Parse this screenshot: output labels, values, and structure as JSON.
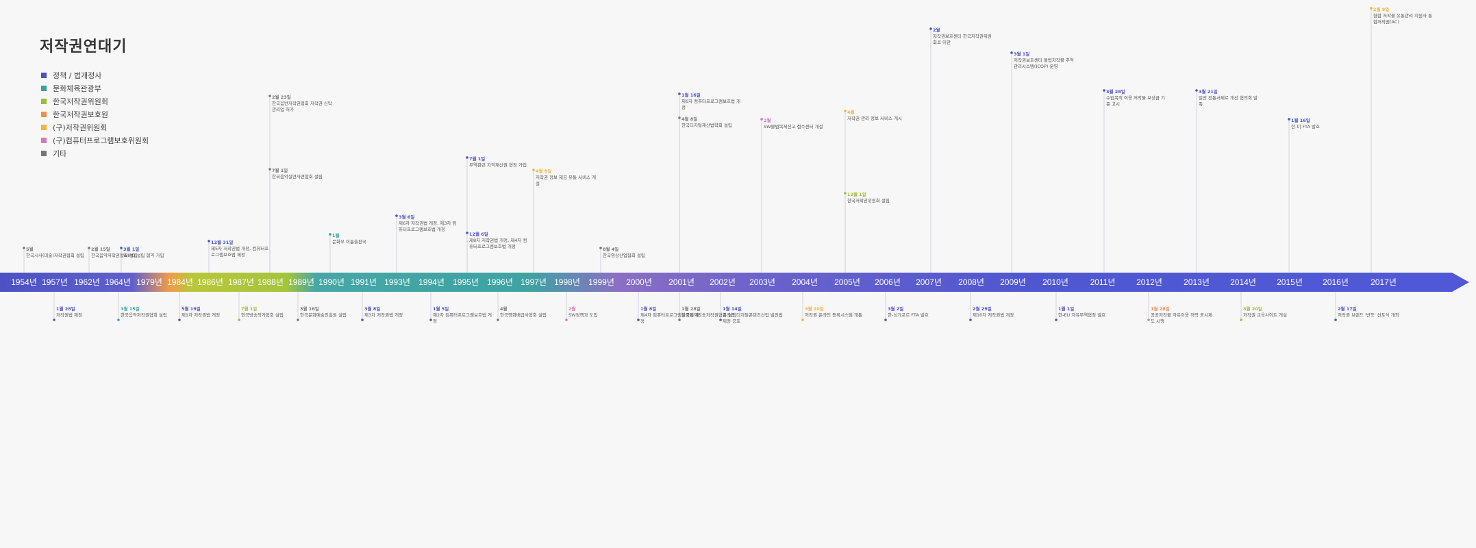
{
  "title": "저작권연대기",
  "colors": {
    "policy": "#4b52c4",
    "mcst": "#37a1a4",
    "kcc": "#9cbf33",
    "kcpc": "#ef8d54",
    "kcpc_old": "#f2b43c",
    "kcpp": "#d07ab7",
    "other": "#777777"
  },
  "legend": [
    {
      "label": "정책 / 법개정사",
      "color": "policy"
    },
    {
      "label": "문화체육관광부",
      "color": "mcst"
    },
    {
      "label": "한국저작권위원회",
      "color": "kcc"
    },
    {
      "label": "한국저작권보호원",
      "color": "kcpc"
    },
    {
      "label": "(구)저작권위원회",
      "color": "kcpc_old"
    },
    {
      "label": "(구)컴퓨터프로그램보호위원회",
      "color": "kcpp"
    },
    {
      "label": "기타",
      "color": "other"
    }
  ],
  "years": [
    "1954년",
    "1957년",
    "1962년",
    "1964년",
    "1979년",
    "1984년",
    "1986년",
    "1987년",
    "1988년",
    "1989년",
    "1990년",
    "1991년",
    "1993년",
    "1994년",
    "1995년",
    "1996년",
    "1997년",
    "1998년",
    "1999년",
    "2000년",
    "2001년",
    "2002년",
    "2003년",
    "2004년",
    "2005년",
    "2006년",
    "2007년",
    "2008년",
    "2009년",
    "2010년",
    "2011년",
    "2012년",
    "2013년",
    "2014년",
    "2015년",
    "2016년",
    "2017년"
  ],
  "events": {
    "above": [
      {
        "date": "5월",
        "text": "한국시사(미술)저작권협회 설립"
      },
      {
        "date": "2월 15일",
        "text": "한국음악저작권협회 설립"
      },
      {
        "date": "3월 1일",
        "text": "WIPO 설립 협약 가입"
      },
      {
        "date": "12월 31일",
        "text": "제5차 저작권법 개정, 컴퓨터프로그램보호법 제정"
      },
      {
        "date": "2월 23일",
        "text": "한국음반저작권협회 저작권 신탁 관리업 허가"
      },
      {
        "date": "7월 1일",
        "text": "한국음악실연자연합회 설립"
      },
      {
        "date": "1월",
        "text": "문화부 이름출판국"
      },
      {
        "date": "3월 6일",
        "text": "제6차 저작권법 개정, 제3차 컴퓨터프로그램보호법 개정"
      },
      {
        "date": "7월 1일",
        "text": "무역관련 지적재산권 협정 가입"
      },
      {
        "date": "12월 6일",
        "text": "제8차 저작권법 개정, 제4차 컴퓨터프로그램보호법 개정"
      },
      {
        "date": "4월 8일",
        "text": "저작권 정보 제공 유통 서비스 개설"
      },
      {
        "date": "8월 4일",
        "text": "한국영상산업협회 설립"
      },
      {
        "date": "1월 16일",
        "text": "제6차 컴퓨터프로그램보호법 개정"
      },
      {
        "date": "4월 8일",
        "text": "한국디지털재산법학회 설립"
      },
      {
        "date": "2월",
        "text": "SW불법복제신고 접수센터 개설"
      },
      {
        "date": "4월",
        "text": "저작권 관리 정보 서비스 개시"
      },
      {
        "date": "12월 1일",
        "text": "한국저작권위원회 설립"
      },
      {
        "date": "2월",
        "text": "저작권보호센터 한국저작권위원회로 이관"
      },
      {
        "date": "3월 1일",
        "text": "저작권보호센터 불법저작물 추적 관리시스템(ICOP) 운영"
      },
      {
        "date": "3월 28일",
        "text": "수업목적 이용 저작물 보상금 기준 고시"
      },
      {
        "date": "3월 21일",
        "text": "일반 전통서체로 개선 협의회 발족"
      },
      {
        "date": "1월 16일",
        "text": "한-미 FTA 발효"
      },
      {
        "date": "2월 9일",
        "text": "협합 저작물 유통관리 지원사 통합저작권(AC)"
      }
    ],
    "below": [
      {
        "date": "1월 28일",
        "text": "저작권법 제정"
      },
      {
        "date": "3월 15일",
        "text": "한국음악저작권협회 설립"
      },
      {
        "date": "5월 19일",
        "text": "제1차 저작권법 개정"
      },
      {
        "date": "7월 1일",
        "text": "한국방송작가협회 설립"
      },
      {
        "date": "3월 16일",
        "text": "한국문화예술진흥원 설립"
      },
      {
        "date": "3월 8일",
        "text": "제3차 저작권법 개정"
      },
      {
        "date": "1월 5일",
        "text": "제2차 컴퓨터프로그램보호법 개정"
      },
      {
        "date": "4월",
        "text": "한국영화배급사협회 설립"
      },
      {
        "date": "2월",
        "text": "SW정책과 도입"
      },
      {
        "date": "1월 8일",
        "text": "제4차 컴퓨터프로그램보호법 개정"
      },
      {
        "date": "1월 28일",
        "text": "한국복제전송저작권협회 설립"
      },
      {
        "date": "1월 14일",
        "text": "온라인 디지털콘텐츠산업 발전법 제정·공포"
      },
      {
        "date": "3월 10일",
        "text": "저작권 온라인 등록시스템 개통"
      },
      {
        "date": "3월 2일",
        "text": "한-싱가포르 FTA 발효"
      },
      {
        "date": "2월 29일",
        "text": "제10차 저작권법 개정"
      },
      {
        "date": "1월 1일",
        "text": "한-EU 자유무역협정 발효"
      },
      {
        "date": "1월 28일",
        "text": "공공저작물 자유이용 허락 표시제도 시행"
      },
      {
        "date": "3월 20일",
        "text": "저작권 교육사이트 개설"
      },
      {
        "date": "2월 17일",
        "text": "저작권 브랜드 '반듯' 선포식 개최"
      }
    ]
  }
}
